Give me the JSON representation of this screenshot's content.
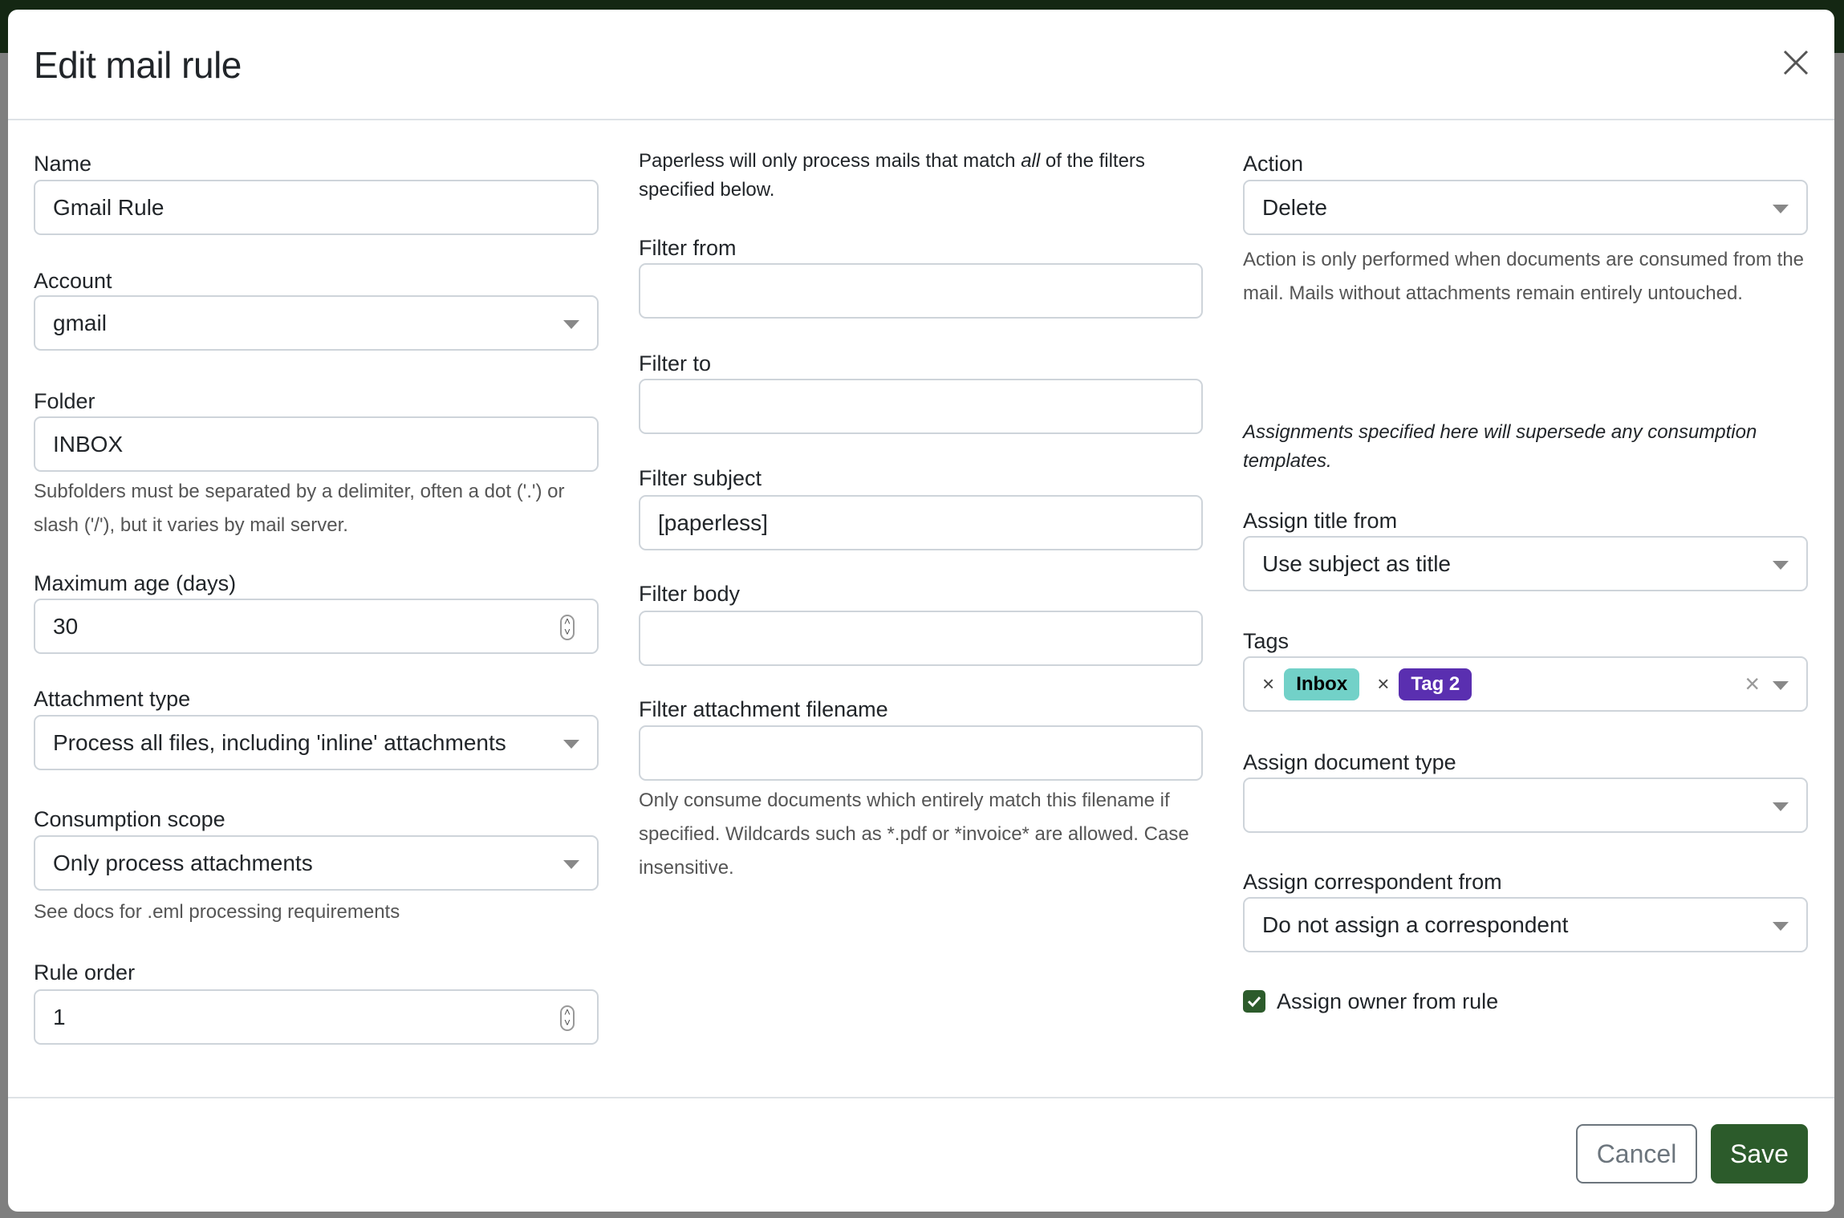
{
  "title": "Edit mail rule",
  "col1": {
    "name": {
      "label": "Name",
      "value": "Gmail Rule"
    },
    "account": {
      "label": "Account",
      "value": "gmail"
    },
    "folder": {
      "label": "Folder",
      "value": "INBOX",
      "help": "Subfolders must be separated by a delimiter, often a dot ('.') or slash ('/'), but it varies by mail server."
    },
    "max_age": {
      "label": "Maximum age (days)",
      "value": "30"
    },
    "attachment_type": {
      "label": "Attachment type",
      "value": "Process all files, including 'inline' attachments"
    },
    "consumption_scope": {
      "label": "Consumption scope",
      "value": "Only process attachments",
      "help": "See docs for .eml processing requirements"
    },
    "rule_order": {
      "label": "Rule order",
      "value": "1"
    }
  },
  "col2": {
    "intro_before": "Paperless will only process mails that match ",
    "intro_em": "all",
    "intro_after": " of the filters specified below.",
    "filter_from": {
      "label": "Filter from",
      "value": ""
    },
    "filter_to": {
      "label": "Filter to",
      "value": ""
    },
    "filter_subject": {
      "label": "Filter subject",
      "value": "[paperless]"
    },
    "filter_body": {
      "label": "Filter body",
      "value": ""
    },
    "filter_attachment": {
      "label": "Filter attachment filename",
      "value": "",
      "help": "Only consume documents which entirely match this filename if specified. Wildcards such as *.pdf or *invoice* are allowed. Case insensitive."
    }
  },
  "col3": {
    "action": {
      "label": "Action",
      "value": "Delete",
      "help": "Action is only performed when documents are consumed from the mail. Mails without attachments remain entirely untouched."
    },
    "note": "Assignments specified here will supersede any consumption templates.",
    "assign_title": {
      "label": "Assign title from",
      "value": "Use subject as title"
    },
    "tags": {
      "label": "Tags",
      "items": [
        {
          "label": "Inbox",
          "bg": "#72d1c8",
          "fg": "#000000"
        },
        {
          "label": "Tag 2",
          "bg": "#5a2fb0",
          "fg": "#ffffff"
        }
      ]
    },
    "doc_type": {
      "label": "Assign document type",
      "value": ""
    },
    "correspondent": {
      "label": "Assign correspondent from",
      "value": "Do not assign a correspondent"
    },
    "owner": {
      "label": "Assign owner from rule",
      "checked": true
    }
  },
  "footer": {
    "cancel": "Cancel",
    "save": "Save"
  },
  "colors": {
    "primary": "#2c5b2b",
    "topbar": "#142713"
  }
}
